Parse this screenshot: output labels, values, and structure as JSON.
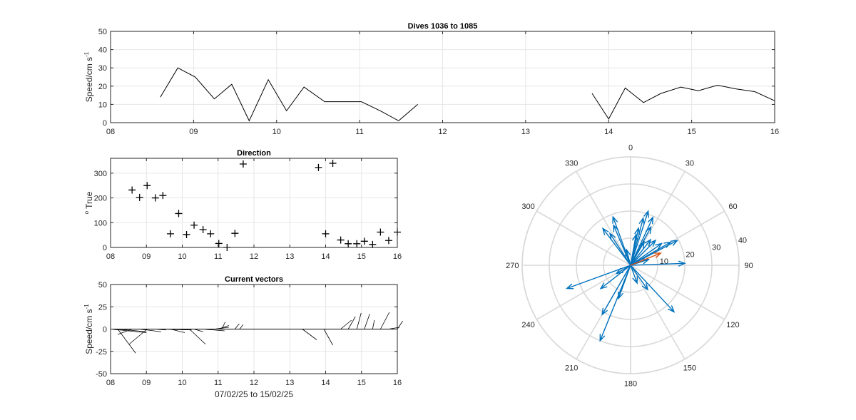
{
  "chart_data": [
    {
      "type": "line",
      "title": "Dives 1036 to 1085",
      "ylabel": "Speed/cm s",
      "ylabel_sup": "-1",
      "xlabel": "",
      "xlim": [
        8,
        16
      ],
      "ylim": [
        0,
        50
      ],
      "xticks": [
        8,
        9,
        10,
        11,
        12,
        13,
        14,
        15,
        16
      ],
      "xticklabels": [
        "08",
        "09",
        "10",
        "11",
        "12",
        "13",
        "14",
        "15",
        "16"
      ],
      "yticks": [
        0,
        10,
        20,
        30,
        40,
        50
      ],
      "grid": true,
      "series": [
        {
          "color": "#000000",
          "x": [
            8.6,
            8.81,
            9.02,
            9.25,
            9.46,
            9.67,
            9.9,
            10.12,
            10.33,
            10.58,
            10.79,
            11.02,
            11.25,
            11.47,
            11.7
          ],
          "y": [
            14,
            30,
            25,
            13,
            21,
            1,
            23.5,
            6.5,
            19.5,
            11.5,
            11.5,
            11.5,
            6.5,
            1,
            10
          ]
        },
        {
          "color": "#000000",
          "x": [
            13.8,
            14.0,
            14.2,
            14.42,
            14.63,
            14.87,
            15.08,
            15.31,
            15.53,
            15.76,
            16.0
          ],
          "y": [
            16,
            2,
            19,
            11,
            16,
            19.5,
            17.5,
            20.5,
            18.5,
            17,
            12
          ]
        }
      ]
    },
    {
      "type": "scatter",
      "title": "Direction",
      "ylabel": "True",
      "ylabel_prefix": "o",
      "xlim": [
        8,
        16
      ],
      "ylim": [
        0,
        360
      ],
      "xticks": [
        8,
        9,
        10,
        11,
        12,
        13,
        14,
        15,
        16
      ],
      "xticklabels": [
        "08",
        "09",
        "10",
        "11",
        "12",
        "13",
        "14",
        "15",
        "16"
      ],
      "yticks": [
        0,
        100,
        200,
        300
      ],
      "grid": true,
      "marker": "+",
      "points": {
        "x": [
          8.6,
          8.81,
          9.02,
          9.25,
          9.46,
          9.67,
          9.9,
          10.12,
          10.33,
          10.58,
          10.79,
          11.02,
          11.25,
          11.47,
          11.7,
          13.8,
          14.0,
          14.2,
          14.42,
          14.63,
          14.87,
          15.08,
          15.31,
          15.53,
          15.76,
          16.0
        ],
        "y": [
          232,
          202,
          250,
          200,
          210,
          55,
          137,
          52,
          90,
          72,
          55,
          16,
          0,
          57,
          337,
          323,
          55,
          340,
          30,
          15,
          15,
          25,
          12,
          62,
          28,
          62
        ]
      }
    },
    {
      "type": "line",
      "subtype": "feather",
      "title": "Current vectors",
      "ylabel": "Speed/cm s",
      "ylabel_sup": "-1",
      "xlabel": "07/02/25 to 15/02/25",
      "xlim": [
        8,
        16
      ],
      "ylim": [
        -50,
        50
      ],
      "xticks": [
        8,
        9,
        10,
        11,
        12,
        13,
        14,
        15,
        16
      ],
      "xticklabels": [
        "08",
        "09",
        "10",
        "11",
        "12",
        "13",
        "14",
        "15",
        "16"
      ],
      "yticks": [
        -50,
        -25,
        0,
        25,
        50
      ],
      "grid": true,
      "vectors": [
        {
          "x": 8.0,
          "u": 1.0,
          "v": -4
        },
        {
          "x": 8.2,
          "u": 0.8,
          "v": -3
        },
        {
          "x": 8.2,
          "u": 0.5,
          "v": -27
        },
        {
          "x": 8.6,
          "u": -0.4,
          "v": -6
        },
        {
          "x": 8.81,
          "u": 0.6,
          "v": -3
        },
        {
          "x": 9.02,
          "u": -0.5,
          "v": -17
        },
        {
          "x": 9.25,
          "u": 0.3,
          "v": -1
        },
        {
          "x": 9.46,
          "u": 0.8,
          "v": -1
        },
        {
          "x": 9.67,
          "u": 0.4,
          "v": -4
        },
        {
          "x": 9.9,
          "u": 0.6,
          "v": 0
        },
        {
          "x": 10.12,
          "u": 0.25,
          "v": 0
        },
        {
          "x": 10.33,
          "u": 0.25,
          "v": -3
        },
        {
          "x": 10.58,
          "u": 0.6,
          "v": -2
        },
        {
          "x": 10.79,
          "u": 0.2,
          "v": 0
        },
        {
          "x": 10.2,
          "u": 0.45,
          "v": -17
        },
        {
          "x": 10.9,
          "u": 0.4,
          "v": 2
        },
        {
          "x": 11.0,
          "u": 0.3,
          "v": 4
        },
        {
          "x": 11.1,
          "u": 0.1,
          "v": 8
        },
        {
          "x": 11.25,
          "u": 0.1,
          "v": 0
        },
        {
          "x": 11.47,
          "u": 0.12,
          "v": 6
        },
        {
          "x": 11.6,
          "u": 0.1,
          "v": 5
        },
        {
          "x": 13.35,
          "u": 0.4,
          "v": -12
        },
        {
          "x": 13.95,
          "u": 0.25,
          "v": -18
        },
        {
          "x": 14.2,
          "u": 0.05,
          "v": 0
        },
        {
          "x": 14.42,
          "u": 0.3,
          "v": 10
        },
        {
          "x": 14.63,
          "u": 0.2,
          "v": 14
        },
        {
          "x": 14.87,
          "u": 0.12,
          "v": 18
        },
        {
          "x": 15.08,
          "u": 0.15,
          "v": 17
        },
        {
          "x": 15.31,
          "u": 0.05,
          "v": 10
        },
        {
          "x": 15.53,
          "u": 0.25,
          "v": 19
        },
        {
          "x": 15.76,
          "u": 0.3,
          "v": 2
        },
        {
          "x": 16.0,
          "u": 0.15,
          "v": 9
        }
      ]
    },
    {
      "type": "polar",
      "subtype": "compass",
      "theta_direction": "clockwise",
      "theta_zero": "top",
      "theta_labels": [
        0,
        30,
        60,
        90,
        120,
        150,
        180,
        210,
        240,
        270,
        300,
        330
      ],
      "r_ticks": [
        10,
        20,
        30,
        40
      ],
      "r_max": 40,
      "grid": true,
      "arrow_color": "#0072BD",
      "mean_arrow_color": "#D95319",
      "arrows": [
        {
          "deg": 30,
          "r": 10
        },
        {
          "deg": 38,
          "r": 12
        },
        {
          "deg": 45,
          "r": 13
        },
        {
          "deg": 55,
          "r": 14
        },
        {
          "deg": 60,
          "r": 17
        },
        {
          "deg": 62,
          "r": 19.5
        },
        {
          "deg": 88,
          "r": 20
        },
        {
          "deg": 72,
          "r": 7
        },
        {
          "deg": 12,
          "r": 14
        },
        {
          "deg": 15,
          "r": 18
        },
        {
          "deg": 18,
          "r": 21
        },
        {
          "deg": 25,
          "r": 19.5
        },
        {
          "deg": 28,
          "r": 16
        },
        {
          "deg": 337,
          "r": 16
        },
        {
          "deg": 340,
          "r": 19
        },
        {
          "deg": 323,
          "r": 17
        },
        {
          "deg": 327,
          "r": 14
        },
        {
          "deg": 10,
          "r": 11.5
        },
        {
          "deg": 137,
          "r": 23.5
        },
        {
          "deg": 145,
          "r": 11
        },
        {
          "deg": 160,
          "r": 7
        },
        {
          "deg": 200,
          "r": 13
        },
        {
          "deg": 202,
          "r": 30
        },
        {
          "deg": 210,
          "r": 21
        },
        {
          "deg": 232,
          "r": 14
        },
        {
          "deg": 250,
          "r": 25
        },
        {
          "deg": 240,
          "r": 6
        },
        {
          "deg": 345,
          "r": 6
        }
      ],
      "mean_arrow": {
        "deg": 68,
        "r": 12
      }
    }
  ]
}
